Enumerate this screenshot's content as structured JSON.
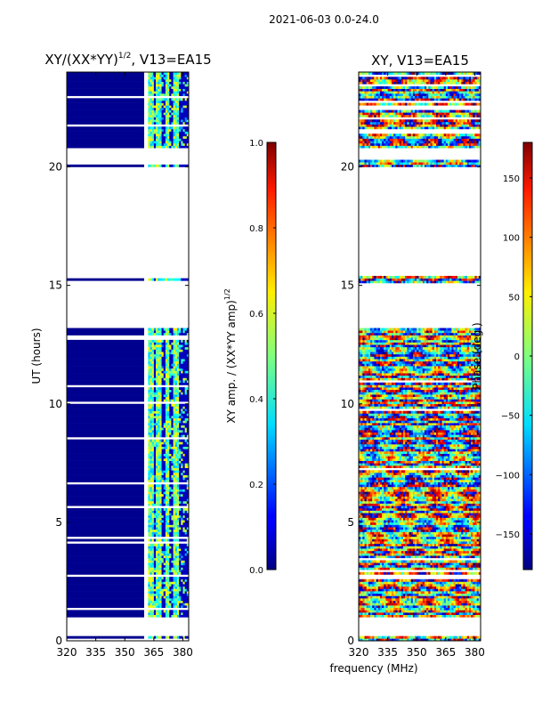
{
  "figure": {
    "suptitle": "2021-06-03 0.0-24.0",
    "shared_xlabel": "frequency (MHz)"
  },
  "chart_data": [
    {
      "type": "heatmap",
      "title_main": "XY/(XX*YY)",
      "title_exp": "1/2",
      "title_suffix": ", V13=EA15",
      "ylabel": "UT (hours)",
      "xlim": [
        320,
        383
      ],
      "ylim": [
        0,
        24
      ],
      "xticks": [
        "320",
        "335",
        "350",
        "365",
        "380"
      ],
      "xtick_values": [
        320,
        335,
        350,
        365,
        380
      ],
      "yticks": [
        "0",
        "5",
        "10",
        "15",
        "20"
      ],
      "ytick_values": [
        0,
        5,
        10,
        15,
        20
      ],
      "colorbar": {
        "label_main": "XY amp. / (XX*YY amp)",
        "label_exp": "1/2",
        "ticks": [
          "0.0",
          "0.2",
          "0.4",
          "0.6",
          "0.8",
          "1.0"
        ],
        "tick_values": [
          0.0,
          0.2,
          0.4,
          0.6,
          0.8,
          1.0
        ],
        "range": [
          0,
          1
        ]
      }
    },
    {
      "type": "heatmap",
      "title_main": "XY, V13=EA15",
      "ylabel": "",
      "xlim": [
        320,
        383
      ],
      "ylim": [
        0,
        24
      ],
      "xticks": [
        "320",
        "335",
        "350",
        "365",
        "380"
      ],
      "xtick_values": [
        320,
        335,
        350,
        365,
        380
      ],
      "yticks": [
        "0",
        "5",
        "10",
        "15",
        "20"
      ],
      "ytick_values": [
        0,
        5,
        10,
        15,
        20
      ],
      "colorbar": {
        "label_main": "Phase (deg.)",
        "ticks": [
          "−150",
          "−100",
          "−50",
          "0",
          "50",
          "100",
          "150"
        ],
        "tick_values": [
          -150,
          -100,
          -50,
          0,
          50,
          100,
          150
        ],
        "range": [
          -180,
          180
        ]
      }
    }
  ],
  "data_gaps_ut_hours": [
    [
      0.25,
      1.0
    ],
    [
      13.2,
      15.0
    ],
    [
      15.4,
      20.0
    ],
    [
      20.3,
      20.8
    ]
  ],
  "channel_bands_mhz": [
    [
      362.5,
      365.0
    ],
    [
      366.0,
      369.0
    ],
    [
      371.0,
      373.0
    ],
    [
      375.5,
      378.5
    ]
  ]
}
